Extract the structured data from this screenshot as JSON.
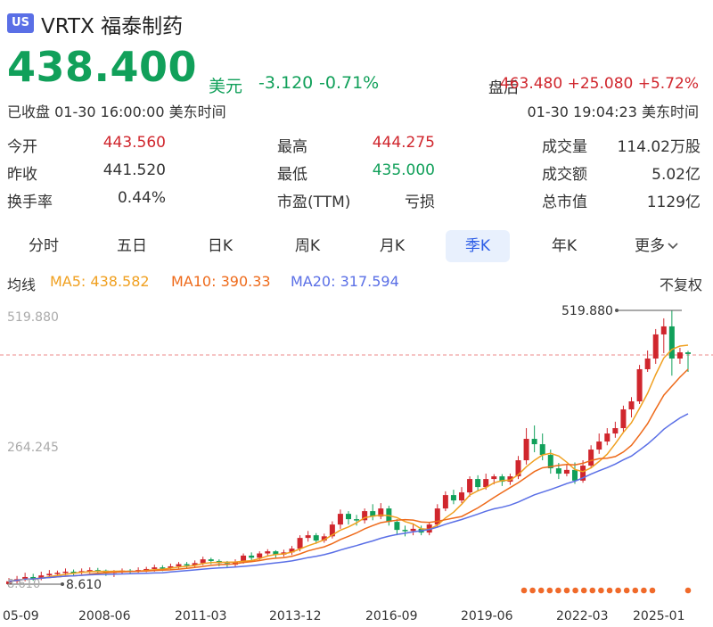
{
  "header": {
    "market_badge": "US",
    "ticker": "VRTX",
    "name": "福泰制药"
  },
  "quote": {
    "price": "438.400",
    "currency": "美元",
    "change": "-3.120",
    "change_pct": "-0.71%",
    "status": "已收盘 01-30 16:00:00 美东时间",
    "after_hours_label": "盘后",
    "after_hours_price": "463.480",
    "after_hours_change": "+25.080",
    "after_hours_pct": "+5.72%",
    "after_hours_time": "01-30 19:04:23 美东时间"
  },
  "stats": [
    {
      "label": "今开",
      "value": "443.560",
      "color": "#d0262d"
    },
    {
      "label": "最高",
      "value": "444.275",
      "color": "#d0262d"
    },
    {
      "label": "成交量",
      "value": "114.02万股",
      "color": "#333333"
    },
    {
      "label": "昨收",
      "value": "441.520",
      "color": "#333333"
    },
    {
      "label": "最低",
      "value": "435.000",
      "color": "#11a05a"
    },
    {
      "label": "成交额",
      "value": "5.02亿",
      "color": "#333333"
    },
    {
      "label": "换手率",
      "value": "0.44%",
      "color": "#333333"
    },
    {
      "label": "市盈(TTM)",
      "value": "亏损",
      "color": "#333333"
    },
    {
      "label": "总市值",
      "value": "1129亿",
      "color": "#333333"
    }
  ],
  "tabs": [
    "分时",
    "五日",
    "日K",
    "周K",
    "月K",
    "季K",
    "年K",
    "更多"
  ],
  "active_tab": "季K",
  "ma": {
    "label": "均线",
    "ma5": "MA5: 438.582",
    "ma10": "MA10: 390.33",
    "ma20": "MA20: 317.594",
    "adjust": "不复权",
    "ma5_color": "#f0a020",
    "ma10_color": "#ee6a1a",
    "ma20_color": "#5a6fe6"
  },
  "colors": {
    "up": "#d0262d",
    "down": "#11a05a",
    "accent": "#2b5ce6"
  },
  "chart_data": {
    "type": "candlestick",
    "y_labels": [
      "519.880",
      "264.245"
    ],
    "high_marker": "519.880",
    "low_marker": "8.610",
    "current_label": "8.610",
    "x_tick_labels": [
      "05-09",
      "2008-06",
      "2011-03",
      "2013-12",
      "2016-09",
      "2019-06",
      "2022-03",
      "2025-01"
    ],
    "candles": [
      {
        "o": 8.61,
        "c": 14,
        "h": 20,
        "l": 8.61
      },
      {
        "o": 14,
        "c": 18,
        "h": 24,
        "l": 10
      },
      {
        "o": 18,
        "c": 22,
        "h": 30,
        "l": 14
      },
      {
        "o": 22,
        "c": 20,
        "h": 28,
        "l": 15
      },
      {
        "o": 20,
        "c": 25,
        "h": 32,
        "l": 16
      },
      {
        "o": 25,
        "c": 28,
        "h": 35,
        "l": 20
      },
      {
        "o": 28,
        "c": 30,
        "h": 34,
        "l": 22
      },
      {
        "o": 30,
        "c": 32,
        "h": 38,
        "l": 25
      },
      {
        "o": 32,
        "c": 30,
        "h": 36,
        "l": 24
      },
      {
        "o": 30,
        "c": 33,
        "h": 38,
        "l": 27
      },
      {
        "o": 33,
        "c": 35,
        "h": 40,
        "l": 29
      },
      {
        "o": 35,
        "c": 34,
        "h": 39,
        "l": 28
      },
      {
        "o": 34,
        "c": 30,
        "h": 36,
        "l": 24
      },
      {
        "o": 30,
        "c": 32,
        "h": 35,
        "l": 22
      },
      {
        "o": 32,
        "c": 34,
        "h": 38,
        "l": 27
      },
      {
        "o": 34,
        "c": 33,
        "h": 37,
        "l": 28
      },
      {
        "o": 33,
        "c": 35,
        "h": 40,
        "l": 30
      },
      {
        "o": 35,
        "c": 37,
        "h": 41,
        "l": 31
      },
      {
        "o": 37,
        "c": 40,
        "h": 45,
        "l": 32
      },
      {
        "o": 40,
        "c": 38,
        "h": 44,
        "l": 33
      },
      {
        "o": 38,
        "c": 42,
        "h": 47,
        "l": 35
      },
      {
        "o": 42,
        "c": 46,
        "h": 50,
        "l": 38
      },
      {
        "o": 46,
        "c": 44,
        "h": 50,
        "l": 39
      },
      {
        "o": 44,
        "c": 48,
        "h": 53,
        "l": 40
      },
      {
        "o": 48,
        "c": 55,
        "h": 60,
        "l": 44
      },
      {
        "o": 55,
        "c": 52,
        "h": 58,
        "l": 46
      },
      {
        "o": 52,
        "c": 48,
        "h": 55,
        "l": 42
      },
      {
        "o": 48,
        "c": 45,
        "h": 52,
        "l": 40
      },
      {
        "o": 45,
        "c": 50,
        "h": 55,
        "l": 41
      },
      {
        "o": 50,
        "c": 62,
        "h": 66,
        "l": 47
      },
      {
        "o": 62,
        "c": 58,
        "h": 68,
        "l": 53
      },
      {
        "o": 58,
        "c": 66,
        "h": 70,
        "l": 54
      },
      {
        "o": 66,
        "c": 70,
        "h": 74,
        "l": 60
      },
      {
        "o": 70,
        "c": 64,
        "h": 72,
        "l": 58
      },
      {
        "o": 64,
        "c": 68,
        "h": 73,
        "l": 60
      },
      {
        "o": 68,
        "c": 75,
        "h": 80,
        "l": 63
      },
      {
        "o": 75,
        "c": 95,
        "h": 100,
        "l": 70
      },
      {
        "o": 95,
        "c": 100,
        "h": 108,
        "l": 88
      },
      {
        "o": 100,
        "c": 90,
        "h": 104,
        "l": 84
      },
      {
        "o": 90,
        "c": 98,
        "h": 103,
        "l": 86
      },
      {
        "o": 98,
        "c": 120,
        "h": 126,
        "l": 94
      },
      {
        "o": 120,
        "c": 140,
        "h": 148,
        "l": 112
      },
      {
        "o": 140,
        "c": 130,
        "h": 145,
        "l": 120
      },
      {
        "o": 130,
        "c": 128,
        "h": 138,
        "l": 118
      },
      {
        "o": 128,
        "c": 145,
        "h": 150,
        "l": 122
      },
      {
        "o": 145,
        "c": 135,
        "h": 158,
        "l": 128
      },
      {
        "o": 135,
        "c": 150,
        "h": 160,
        "l": 130
      },
      {
        "o": 150,
        "c": 125,
        "h": 155,
        "l": 118
      },
      {
        "o": 125,
        "c": 110,
        "h": 130,
        "l": 100
      },
      {
        "o": 110,
        "c": 108,
        "h": 118,
        "l": 98
      },
      {
        "o": 108,
        "c": 112,
        "h": 120,
        "l": 100
      },
      {
        "o": 112,
        "c": 105,
        "h": 118,
        "l": 100
      },
      {
        "o": 105,
        "c": 120,
        "h": 125,
        "l": 100
      },
      {
        "o": 120,
        "c": 150,
        "h": 158,
        "l": 115
      },
      {
        "o": 150,
        "c": 175,
        "h": 182,
        "l": 145
      },
      {
        "o": 175,
        "c": 165,
        "h": 185,
        "l": 158
      },
      {
        "o": 165,
        "c": 180,
        "h": 190,
        "l": 160
      },
      {
        "o": 180,
        "c": 205,
        "h": 210,
        "l": 172
      },
      {
        "o": 205,
        "c": 190,
        "h": 212,
        "l": 182
      },
      {
        "o": 190,
        "c": 205,
        "h": 215,
        "l": 185
      },
      {
        "o": 205,
        "c": 210,
        "h": 214,
        "l": 195
      },
      {
        "o": 210,
        "c": 200,
        "h": 214,
        "l": 192
      },
      {
        "o": 200,
        "c": 210,
        "h": 215,
        "l": 194
      },
      {
        "o": 210,
        "c": 240,
        "h": 248,
        "l": 205
      },
      {
        "o": 240,
        "c": 280,
        "h": 300,
        "l": 232
      },
      {
        "o": 280,
        "c": 270,
        "h": 305,
        "l": 255
      },
      {
        "o": 270,
        "c": 250,
        "h": 290,
        "l": 240
      },
      {
        "o": 250,
        "c": 225,
        "h": 260,
        "l": 215
      },
      {
        "o": 225,
        "c": 215,
        "h": 235,
        "l": 205
      },
      {
        "o": 215,
        "c": 222,
        "h": 232,
        "l": 210
      },
      {
        "o": 222,
        "c": 202,
        "h": 236,
        "l": 196
      },
      {
        "o": 202,
        "c": 230,
        "h": 240,
        "l": 198
      },
      {
        "o": 230,
        "c": 260,
        "h": 268,
        "l": 225
      },
      {
        "o": 260,
        "c": 275,
        "h": 290,
        "l": 252
      },
      {
        "o": 275,
        "c": 290,
        "h": 300,
        "l": 268
      },
      {
        "o": 290,
        "c": 300,
        "h": 312,
        "l": 282
      },
      {
        "o": 300,
        "c": 335,
        "h": 342,
        "l": 292
      },
      {
        "o": 335,
        "c": 350,
        "h": 358,
        "l": 320
      },
      {
        "o": 350,
        "c": 410,
        "h": 418,
        "l": 345
      },
      {
        "o": 410,
        "c": 430,
        "h": 445,
        "l": 405
      },
      {
        "o": 430,
        "c": 475,
        "h": 485,
        "l": 420
      },
      {
        "o": 475,
        "c": 490,
        "h": 505,
        "l": 440
      },
      {
        "o": 490,
        "c": 430,
        "h": 519.88,
        "l": 398
      },
      {
        "o": 430,
        "c": 441.52,
        "h": 450,
        "l": 420
      },
      {
        "o": 441.52,
        "c": 438.4,
        "h": 444.275,
        "l": 405
      }
    ]
  }
}
